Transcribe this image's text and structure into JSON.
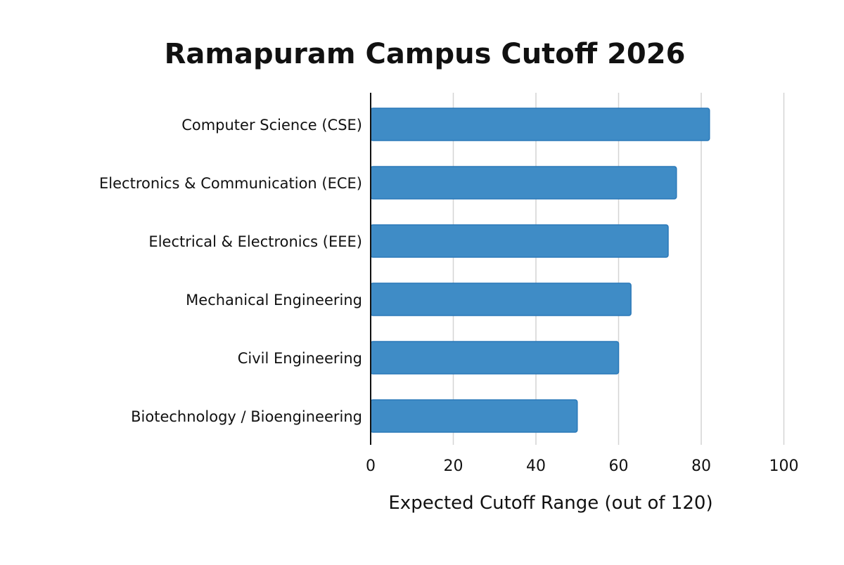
{
  "chart_data": {
    "type": "bar",
    "orientation": "horizontal",
    "title": "Ramapuram Campus Cutoff 2026",
    "xlabel": "Expected Cutoff Range (out of 120)",
    "ylabel": "",
    "categories": [
      "Computer Science (CSE)",
      "Electronics & Communication (ECE)",
      "Electrical & Electronics (EEE)",
      "Mechanical Engineering",
      "Civil Engineering",
      "Biotechnology / Bioengineering"
    ],
    "values": [
      82,
      74,
      72,
      63,
      60,
      50
    ],
    "xlim": [
      0,
      100
    ],
    "xticks": [
      0,
      20,
      40,
      60,
      80,
      100
    ],
    "grid": true,
    "bar_color": "#3f8cc6",
    "bar_edge_color": "#2a78b8"
  }
}
